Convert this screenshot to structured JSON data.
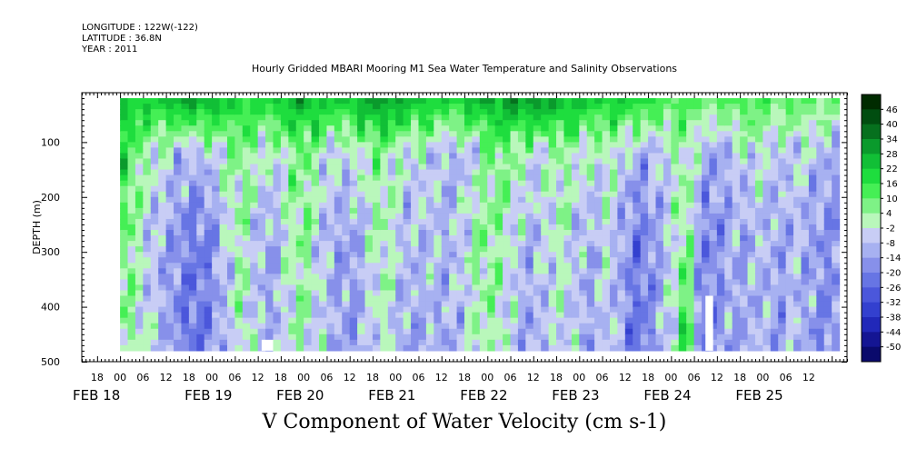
{
  "header": {
    "longitude": "LONGITUDE : 122W(-122)",
    "latitude": "LATITUDE : 36.8N",
    "year": "YEAR : 2011"
  },
  "chart_data": {
    "type": "heatmap",
    "title": "Hourly Gridded MBARI Mooring M1 Sea Water Temperature and Salinity Observations",
    "xlabel": "V Component of Water Velocity (cm s-1)",
    "ylabel": "DEPTH (m)",
    "x_start": "2011-02-17T14:00",
    "x_end": "2011-02-25T22:00",
    "data_start": "2011-02-18T00:00",
    "data_end": "2011-02-25T20:00",
    "ylim": [
      500,
      10
    ],
    "data_depth_range": [
      20,
      480
    ],
    "y_ticks": [
      100,
      200,
      300,
      400,
      500
    ],
    "hour_tick_labels": [
      "18",
      "00",
      "06",
      "12",
      "18",
      "00",
      "06",
      "12",
      "18",
      "00",
      "06",
      "12",
      "18",
      "00",
      "06",
      "12",
      "18",
      "00",
      "06",
      "12",
      "18",
      "00",
      "06",
      "12",
      "18",
      "00",
      "06",
      "12",
      "18",
      "00",
      "06",
      "12"
    ],
    "date_labels": [
      "FEB 18",
      "FEB 19",
      "FEB 20",
      "FEB 21",
      "FEB 22",
      "FEB 23",
      "FEB 24",
      "FEB 25"
    ],
    "colorbar": {
      "levels": [
        -50,
        -44,
        -38,
        -32,
        -26,
        -20,
        -14,
        -8,
        -2,
        4,
        10,
        16,
        22,
        28,
        34,
        40,
        46
      ],
      "labels": [
        "46",
        "40",
        "34",
        "28",
        "22",
        "16",
        "10",
        "4",
        "-2",
        "-8",
        "-14",
        "-20",
        "-26",
        "-32",
        "-38",
        "-44",
        "-50"
      ],
      "colors": [
        "#002b00",
        "#004d10",
        "#06701e",
        "#0a9a2c",
        "#11bf36",
        "#1edd3e",
        "#45ef55",
        "#7ef286",
        "#b9f7bb",
        "#c8cdf5",
        "#a7b1f1",
        "#8790ea",
        "#6775e4",
        "#4b57db",
        "#3340cf",
        "#2128b9",
        "#141593",
        "#0a0a6c"
      ]
    },
    "columns": [
      {
        "t": "2011-02-18T00:00",
        "d0": 22,
        "d1": 18,
        "d2": 12,
        "d3": 4
      },
      {
        "t": "2011-02-18T04:00",
        "d0": 24,
        "d1": 8,
        "d2": 2,
        "d3": 0
      },
      {
        "t": "2011-02-18T08:00",
        "d0": 20,
        "d1": 0,
        "d2": -8,
        "d3": -4
      },
      {
        "t": "2011-02-18T12:00",
        "d0": 26,
        "d1": -2,
        "d2": -12,
        "d3": -10
      },
      {
        "t": "2011-02-18T16:00",
        "d0": 30,
        "d1": -10,
        "d2": -18,
        "d3": -20
      },
      {
        "t": "2011-02-18T20:00",
        "d0": 32,
        "d1": -8,
        "d2": -22,
        "d3": -24
      },
      {
        "t": "2011-02-19T00:00",
        "d0": 28,
        "d1": -6,
        "d2": -18,
        "d3": -16
      },
      {
        "t": "2011-02-19T04:00",
        "d0": 24,
        "d1": 2,
        "d2": -4,
        "d3": -8
      },
      {
        "t": "2011-02-19T08:00",
        "d0": 20,
        "d1": 6,
        "d2": 4,
        "d3": 2
      },
      {
        "t": "2011-02-19T12:00",
        "d0": 18,
        "d1": 2,
        "d2": -10,
        "d3": -6
      },
      {
        "t": "2011-02-19T16:00",
        "d0": 22,
        "d1": -4,
        "d2": -14,
        "d3": -12
      },
      {
        "t": "2011-02-19T20:00",
        "d0": 26,
        "d1": 4,
        "d2": 0,
        "d3": -2
      },
      {
        "t": "2011-02-20T00:00",
        "d0": 30,
        "d1": 8,
        "d2": 6,
        "d3": 2
      },
      {
        "t": "2011-02-20T04:00",
        "d0": 26,
        "d1": 0,
        "d2": -6,
        "d3": -4
      },
      {
        "t": "2011-02-20T08:00",
        "d0": 22,
        "d1": -6,
        "d2": -12,
        "d3": -10
      },
      {
        "t": "2011-02-20T12:00",
        "d0": 24,
        "d1": -4,
        "d2": -14,
        "d3": -16
      },
      {
        "t": "2011-02-20T16:00",
        "d0": 28,
        "d1": 2,
        "d2": -8,
        "d3": -10
      },
      {
        "t": "2011-02-20T20:00",
        "d0": 32,
        "d1": 6,
        "d2": 4,
        "d3": 0
      },
      {
        "t": "2011-02-21T00:00",
        "d0": 30,
        "d1": 0,
        "d2": -4,
        "d3": -8
      },
      {
        "t": "2011-02-21T04:00",
        "d0": 26,
        "d1": -6,
        "d2": -10,
        "d3": -14
      },
      {
        "t": "2011-02-21T08:00",
        "d0": 24,
        "d1": -2,
        "d2": -6,
        "d3": -10
      },
      {
        "t": "2011-02-21T12:00",
        "d0": 20,
        "d1": -8,
        "d2": -10,
        "d3": -12
      },
      {
        "t": "2011-02-21T16:00",
        "d0": 22,
        "d1": -10,
        "d2": -8,
        "d3": -10
      },
      {
        "t": "2011-02-21T20:00",
        "d0": 26,
        "d1": -6,
        "d2": 2,
        "d3": -4
      },
      {
        "t": "2011-02-22T00:00",
        "d0": 28,
        "d1": 4,
        "d2": 6,
        "d3": 4
      },
      {
        "t": "2011-02-22T04:00",
        "d0": 30,
        "d1": 8,
        "d2": 2,
        "d3": -2
      },
      {
        "t": "2011-02-22T08:00",
        "d0": 32,
        "d1": 2,
        "d2": -6,
        "d3": -10
      },
      {
        "t": "2011-02-22T12:00",
        "d0": 34,
        "d1": -4,
        "d2": -10,
        "d3": -14
      },
      {
        "t": "2011-02-22T16:00",
        "d0": 30,
        "d1": 0,
        "d2": -4,
        "d3": -6
      },
      {
        "t": "2011-02-22T20:00",
        "d0": 26,
        "d1": 4,
        "d2": 0,
        "d3": -2
      },
      {
        "t": "2011-02-23T00:00",
        "d0": 24,
        "d1": 0,
        "d2": -8,
        "d3": -10
      },
      {
        "t": "2011-02-23T04:00",
        "d0": 22,
        "d1": -4,
        "d2": -10,
        "d3": -12
      },
      {
        "t": "2011-02-23T08:00",
        "d0": 20,
        "d1": 2,
        "d2": -2,
        "d3": -4
      },
      {
        "t": "2011-02-23T12:00",
        "d0": 24,
        "d1": -6,
        "d2": -16,
        "d3": -18
      },
      {
        "t": "2011-02-23T16:00",
        "d0": 20,
        "d1": -12,
        "d2": -22,
        "d3": -24
      },
      {
        "t": "2011-02-23T20:00",
        "d0": 16,
        "d1": -8,
        "d2": -14,
        "d3": -12
      },
      {
        "t": "2011-02-24T00:00",
        "d0": 12,
        "d1": -2,
        "d2": -6,
        "d3": -4
      },
      {
        "t": "2011-02-24T04:00",
        "d0": 14,
        "d1": 4,
        "d2": 10,
        "d3": 22
      },
      {
        "t": "2011-02-24T08:00",
        "d0": 10,
        "d1": -10,
        "d2": -20,
        "d3": -22
      },
      {
        "t": "2011-02-24T12:00",
        "d0": 8,
        "d1": -14,
        "d2": -18,
        "d3": -16
      },
      {
        "t": "2011-02-24T16:00",
        "d0": 12,
        "d1": -8,
        "d2": -10,
        "d3": -12
      },
      {
        "t": "2011-02-24T20:00",
        "d0": 14,
        "d1": -4,
        "d2": -12,
        "d3": -14
      },
      {
        "t": "2011-02-25T00:00",
        "d0": 12,
        "d1": -2,
        "d2": -6,
        "d3": -8
      },
      {
        "t": "2011-02-25T04:00",
        "d0": 10,
        "d1": -8,
        "d2": -14,
        "d3": -16
      },
      {
        "t": "2011-02-25T08:00",
        "d0": 12,
        "d1": -4,
        "d2": -8,
        "d3": -6
      },
      {
        "t": "2011-02-25T12:00",
        "d0": 10,
        "d1": -6,
        "d2": -12,
        "d3": -14
      },
      {
        "t": "2011-02-25T16:00",
        "d0": 8,
        "d1": -10,
        "d2": -16,
        "d3": -18
      }
    ],
    "gaps": [
      {
        "start": "2011-02-19T13:00",
        "end": "2011-02-19T16:00",
        "top": 460,
        "bottom": 480
      },
      {
        "start": "2011-02-24T09:00",
        "end": "2011-02-24T11:00",
        "top": 380,
        "bottom": 480
      }
    ]
  }
}
